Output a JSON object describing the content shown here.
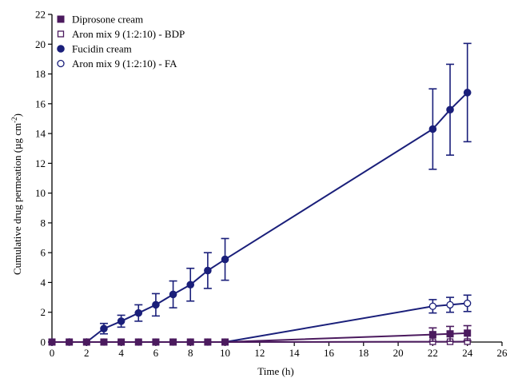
{
  "chart_data": {
    "type": "line",
    "title": "",
    "xlabel": "Time (h)",
    "ylabel": "Cumulative drug permeation (µg cm",
    "ylabel_sup": "-2",
    "ylabel_close": ")",
    "xlim": [
      0,
      26
    ],
    "ylim": [
      0,
      22
    ],
    "xticks": [
      0,
      2,
      4,
      6,
      8,
      10,
      12,
      14,
      16,
      18,
      20,
      22,
      24,
      26
    ],
    "yticks": [
      0,
      2,
      4,
      6,
      8,
      10,
      12,
      14,
      16,
      18,
      20,
      22
    ],
    "grid": false,
    "legend_position": "top-left",
    "series": [
      {
        "name": "Diprosone cream",
        "marker": "square-filled",
        "color": "#4b1a5e",
        "x": [
          0,
          1,
          2,
          3,
          4,
          5,
          6,
          7,
          8,
          9,
          10,
          22,
          23,
          24
        ],
        "y": [
          0,
          0,
          0,
          0,
          0,
          0,
          0,
          0,
          0,
          0,
          0,
          0.5,
          0.55,
          0.6
        ],
        "err": [
          0,
          0,
          0,
          0,
          0,
          0,
          0,
          0,
          0,
          0,
          0,
          0.45,
          0.5,
          0.5
        ]
      },
      {
        "name": "Aron mix 9 (1:2:10) - BDP",
        "marker": "square-open",
        "color": "#4b1a5e",
        "x": [
          0,
          1,
          2,
          3,
          4,
          5,
          6,
          7,
          8,
          9,
          10,
          22,
          23,
          24
        ],
        "y": [
          0,
          0,
          0,
          0,
          0,
          0,
          0,
          0,
          0,
          0,
          0,
          0.02,
          0.02,
          0.03
        ],
        "err": [
          0,
          0,
          0,
          0,
          0,
          0,
          0,
          0,
          0,
          0,
          0,
          0,
          0,
          0
        ]
      },
      {
        "name": "Fucidin cream",
        "marker": "circle-filled",
        "color": "#1a1f7a",
        "x": [
          0,
          1,
          2,
          3,
          4,
          5,
          6,
          7,
          8,
          9,
          10,
          22,
          23,
          24
        ],
        "y": [
          0,
          0,
          0,
          0.9,
          1.4,
          1.95,
          2.5,
          3.2,
          3.85,
          4.8,
          5.55,
          14.3,
          15.6,
          16.75
        ],
        "err": [
          0,
          0,
          0,
          0.35,
          0.4,
          0.55,
          0.75,
          0.9,
          1.1,
          1.2,
          1.4,
          2.7,
          3.05,
          3.3
        ]
      },
      {
        "name": "Aron mix 9 (1:2:10) - FA",
        "marker": "circle-open",
        "color": "#1a1f7a",
        "x": [
          0,
          1,
          2,
          3,
          4,
          5,
          6,
          7,
          8,
          9,
          10,
          22,
          23,
          24
        ],
        "y": [
          0,
          0,
          0,
          0,
          0,
          0,
          0,
          0,
          0,
          0,
          0,
          2.4,
          2.5,
          2.6
        ],
        "err": [
          0,
          0,
          0,
          0,
          0,
          0,
          0,
          0,
          0,
          0,
          0,
          0.45,
          0.5,
          0.55
        ]
      }
    ]
  }
}
